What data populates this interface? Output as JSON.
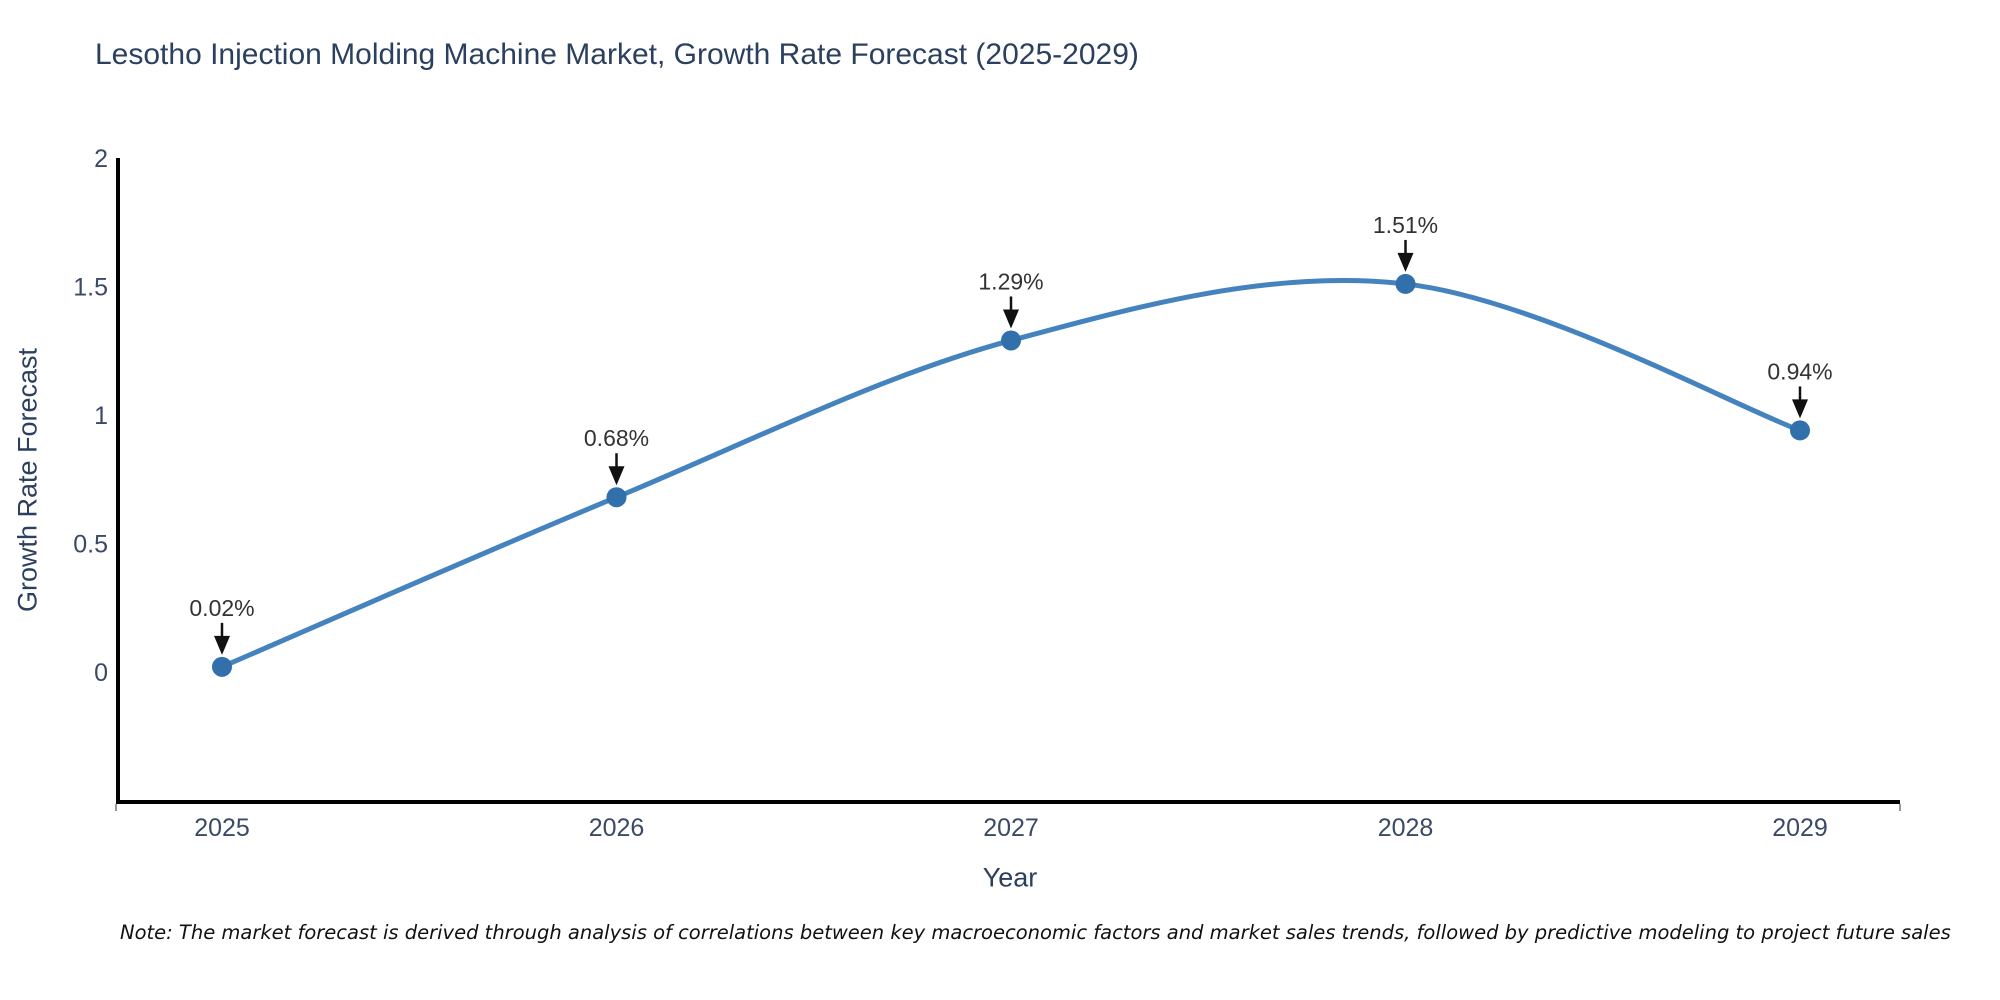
{
  "header": {
    "title": "Lesotho Injection Molding Machine Market, Growth Rate Forecast (2025-2029)"
  },
  "footer": {
    "note": "Note: The market forecast is derived through analysis of correlations between key macroeconomic factors and market sales trends, followed by predictive modeling to project future sales"
  },
  "chart_data": {
    "type": "line",
    "title": "Lesotho Injection Molding Machine Market, Growth Rate Forecast (2025-2029)",
    "xlabel": "Year",
    "ylabel": "Growth Rate Forecast",
    "categories": [
      "2025",
      "2026",
      "2027",
      "2028",
      "2029"
    ],
    "series": [
      {
        "name": "Growth Rate Forecast",
        "values": [
          0.02,
          0.68,
          1.29,
          1.51,
          0.94
        ],
        "point_labels": [
          "0.02%",
          "0.68%",
          "1.29%",
          "1.51%",
          "0.94%"
        ]
      }
    ],
    "ytick_labels": [
      "0",
      "0.5",
      "1",
      "1.5",
      "2"
    ],
    "ytick_values": [
      0,
      0.5,
      1,
      1.5,
      2
    ],
    "ylim": [
      -0.5,
      2
    ],
    "line_shape": "spline",
    "grid": false,
    "legend": false,
    "annotations_style": "label-with-down-arrow",
    "colors": {
      "line": "#4583bf",
      "marker": "#3270ac",
      "axis": "#000000",
      "heading_text": "#2b3f5e",
      "tick_text": "#3a4a66",
      "annotation_text": "#333333",
      "arrow": "#111111",
      "background": "#ffffff"
    }
  }
}
